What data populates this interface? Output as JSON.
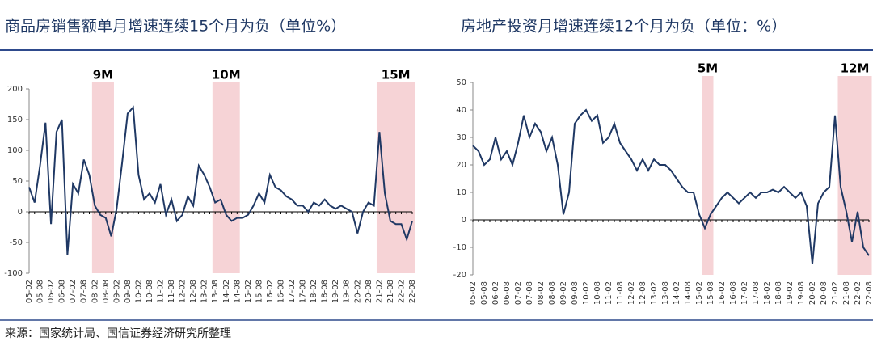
{
  "chart_data": [
    {
      "type": "line",
      "title": "商品房销售额单月增速连续15个月为负（单位%）",
      "color": "#1f3864",
      "categories": [
        "05-02",
        null,
        "05-08",
        null,
        "06-02",
        null,
        "06-08",
        null,
        "07-02",
        null,
        "07-08",
        null,
        "08-02",
        null,
        "08-08",
        null,
        "09-02",
        null,
        "09-08",
        null,
        "10-02",
        null,
        "10-08",
        null,
        "11-02",
        null,
        "11-08",
        null,
        "12-02",
        null,
        "12-08",
        null,
        "13-02",
        null,
        "13-08",
        null,
        "14-02",
        null,
        "14-08",
        null,
        "15-02",
        null,
        "15-08",
        null,
        "16-02",
        null,
        "16-08",
        null,
        "17-02",
        null,
        "17-08",
        null,
        "18-02",
        null,
        "18-08",
        null,
        "19-02",
        null,
        "19-08",
        null,
        "20-02",
        null,
        "20-08",
        null,
        "21-02",
        null,
        "21-08",
        null,
        "22-02",
        null,
        "22-08"
      ],
      "values": [
        40,
        15,
        75,
        145,
        -20,
        130,
        150,
        -70,
        45,
        30,
        85,
        60,
        10,
        -5,
        -10,
        -40,
        5,
        80,
        160,
        170,
        60,
        20,
        30,
        15,
        45,
        -5,
        20,
        -15,
        -5,
        25,
        10,
        75,
        60,
        40,
        15,
        20,
        -5,
        -15,
        -10,
        -10,
        -5,
        10,
        30,
        15,
        60,
        40,
        35,
        25,
        20,
        10,
        10,
        0,
        15,
        10,
        20,
        10,
        5,
        10,
        5,
        0,
        -35,
        0,
        15,
        10,
        130,
        30,
        -15,
        -20,
        -20,
        -45,
        -15
      ],
      "ylim": [
        -100,
        200
      ],
      "yticks": [
        -100,
        -50,
        0,
        50,
        100,
        150,
        200
      ],
      "highlights": [
        {
          "label": "9M",
          "from": 12,
          "to": 15
        },
        {
          "label": "10M",
          "from": 34,
          "to": 38
        },
        {
          "label": "15M",
          "from": 64,
          "to": 70
        }
      ]
    },
    {
      "type": "line",
      "title": "房地产投资月增速连续12个月为负（单位：%）",
      "color": "#1f3864",
      "categories": [
        "05-02",
        null,
        "05-08",
        null,
        "06-02",
        null,
        "06-08",
        null,
        "07-02",
        null,
        "07-08",
        null,
        "08-02",
        null,
        "08-08",
        null,
        "09-02",
        null,
        "09-08",
        null,
        "10-02",
        null,
        "10-08",
        null,
        "11-02",
        null,
        "11-08",
        null,
        "12-02",
        null,
        "12-08",
        null,
        "13-02",
        null,
        "13-08",
        null,
        "14-02",
        null,
        "14-08",
        null,
        "15-02",
        null,
        "15-08",
        null,
        "16-02",
        null,
        "16-08",
        null,
        "17-02",
        null,
        "17-08",
        null,
        "18-02",
        null,
        "18-08",
        null,
        "19-02",
        null,
        "19-08",
        null,
        "20-02",
        null,
        "20-08",
        null,
        "21-02",
        null,
        "21-08",
        null,
        "22-02",
        null,
        "22-08"
      ],
      "values": [
        27,
        25,
        20,
        22,
        30,
        22,
        25,
        20,
        28,
        38,
        30,
        35,
        32,
        25,
        30,
        20,
        2,
        10,
        35,
        38,
        40,
        36,
        38,
        28,
        30,
        35,
        28,
        25,
        22,
        18,
        22,
        18,
        22,
        20,
        20,
        18,
        15,
        12,
        10,
        10,
        2,
        -3,
        2,
        5,
        8,
        10,
        8,
        6,
        8,
        10,
        8,
        10,
        10,
        11,
        10,
        12,
        10,
        8,
        10,
        5,
        -16,
        6,
        10,
        12,
        38,
        12,
        3,
        -8,
        3,
        -10,
        -13
      ],
      "ylim": [
        -20,
        50
      ],
      "yticks": [
        -20,
        -10,
        0,
        10,
        20,
        30,
        40,
        50
      ],
      "highlights": [
        {
          "label": "5M",
          "from": 41,
          "to": 42
        },
        {
          "label": "12M",
          "from": 65,
          "to": 70
        }
      ]
    }
  ],
  "source": "来源：国家统计局、国信证券经济研究所整理"
}
